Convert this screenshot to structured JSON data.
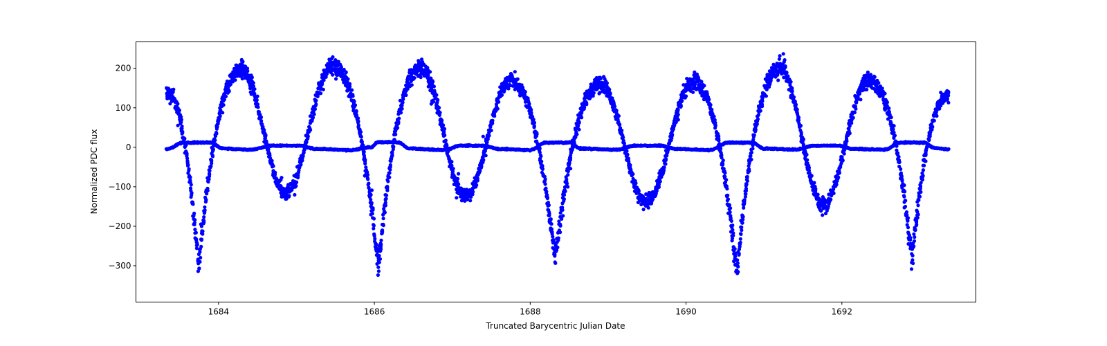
{
  "chart_data": {
    "type": "scatter",
    "title": "",
    "xlabel": "Truncated Barycentric Julian Date",
    "ylabel": "Normalized PDC flux",
    "xlim": [
      1682.94,
      1693.72
    ],
    "ylim": [
      -392,
      267
    ],
    "grid": false,
    "legend": null,
    "marker_color": "#0000ff",
    "xticks": [
      1684,
      1686,
      1688,
      1690,
      1692
    ],
    "yticks": [
      -300,
      -200,
      -100,
      0,
      100,
      200
    ],
    "xtick_labels": [
      "1684",
      "1686",
      "1688",
      "1690",
      "1692"
    ],
    "ytick_labels": [
      "−300",
      "−200",
      "−100",
      "0",
      "100",
      "200"
    ],
    "series": [
      {
        "name": "primary light curve (high amplitude)",
        "description": "Eclipsing-binary-like variation alternating deep (~-300) and shallow (~-130) minima with maxima ~160-205",
        "keypoints": [
          {
            "x": 1683.33,
            "y": 140,
            "kind": "start"
          },
          {
            "x": 1683.74,
            "y": -300,
            "kind": "deep_min"
          },
          {
            "x": 1684.3,
            "y": 195,
            "kind": "max"
          },
          {
            "x": 1684.86,
            "y": -115,
            "kind": "shallow_min"
          },
          {
            "x": 1685.46,
            "y": 205,
            "kind": "max"
          },
          {
            "x": 1686.05,
            "y": -305,
            "kind": "deep_min"
          },
          {
            "x": 1686.6,
            "y": 200,
            "kind": "max"
          },
          {
            "x": 1687.17,
            "y": -125,
            "kind": "shallow_min"
          },
          {
            "x": 1687.74,
            "y": 170,
            "kind": "max"
          },
          {
            "x": 1688.32,
            "y": -290,
            "kind": "deep_min"
          },
          {
            "x": 1688.91,
            "y": 160,
            "kind": "max"
          },
          {
            "x": 1689.49,
            "y": -140,
            "kind": "shallow_min"
          },
          {
            "x": 1690.09,
            "y": 165,
            "kind": "max"
          },
          {
            "x": 1690.65,
            "y": -320,
            "kind": "deep_min"
          },
          {
            "x": 1691.21,
            "y": 200,
            "kind": "max"
          },
          {
            "x": 1691.76,
            "y": -145,
            "kind": "shallow_min"
          },
          {
            "x": 1692.34,
            "y": 170,
            "kind": "max"
          },
          {
            "x": 1692.9,
            "y": -285,
            "kind": "deep_min"
          },
          {
            "x": 1693.37,
            "y": 130,
            "kind": "end"
          }
        ]
      },
      {
        "name": "secondary light curve (low amplitude)",
        "description": "Nearly flat curve around -5 with flat-topped bumps (~+14) near deep minima and small bumps (~+5) near shallow minima",
        "keypoints": [
          {
            "x": 1683.33,
            "y": -5
          },
          {
            "x": 1683.55,
            "y": 12
          },
          {
            "x": 1683.9,
            "y": 12
          },
          {
            "x": 1684.05,
            "y": -3
          },
          {
            "x": 1684.4,
            "y": -6
          },
          {
            "x": 1684.7,
            "y": 4
          },
          {
            "x": 1685.05,
            "y": 4
          },
          {
            "x": 1685.25,
            "y": -4
          },
          {
            "x": 1685.7,
            "y": -7
          },
          {
            "x": 1685.95,
            "y": 0
          },
          {
            "x": 1686.05,
            "y": 13
          },
          {
            "x": 1686.3,
            "y": 13
          },
          {
            "x": 1686.45,
            "y": -3
          },
          {
            "x": 1686.9,
            "y": -7
          },
          {
            "x": 1687.1,
            "y": 4
          },
          {
            "x": 1687.4,
            "y": 4
          },
          {
            "x": 1687.6,
            "y": -4
          },
          {
            "x": 1688.0,
            "y": -7
          },
          {
            "x": 1688.2,
            "y": 12
          },
          {
            "x": 1688.5,
            "y": 12
          },
          {
            "x": 1688.65,
            "y": -3
          },
          {
            "x": 1689.1,
            "y": -6
          },
          {
            "x": 1689.35,
            "y": 4
          },
          {
            "x": 1689.65,
            "y": 4
          },
          {
            "x": 1689.9,
            "y": -4
          },
          {
            "x": 1690.3,
            "y": -7
          },
          {
            "x": 1690.55,
            "y": 12
          },
          {
            "x": 1690.85,
            "y": 12
          },
          {
            "x": 1691.0,
            "y": -3
          },
          {
            "x": 1691.4,
            "y": -6
          },
          {
            "x": 1691.65,
            "y": 4
          },
          {
            "x": 1691.95,
            "y": 4
          },
          {
            "x": 1692.15,
            "y": -4
          },
          {
            "x": 1692.55,
            "y": -6
          },
          {
            "x": 1692.75,
            "y": 12
          },
          {
            "x": 1693.05,
            "y": 12
          },
          {
            "x": 1693.2,
            "y": -2
          },
          {
            "x": 1693.37,
            "y": -5
          }
        ]
      }
    ]
  }
}
